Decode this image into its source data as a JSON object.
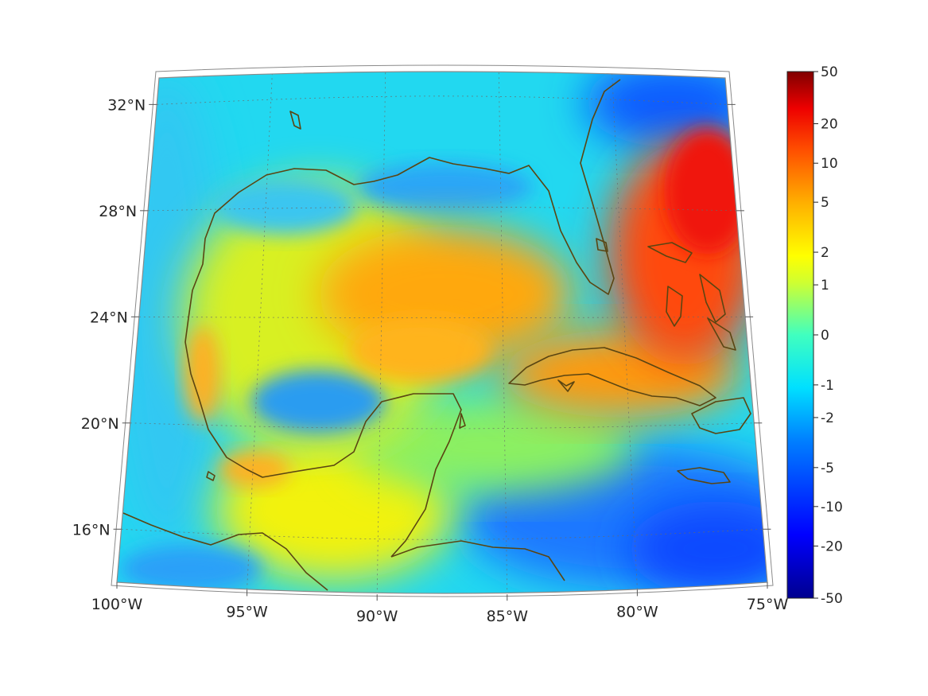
{
  "map": {
    "projection": "conic",
    "lon_range": [
      -100,
      -75
    ],
    "lat_range": [
      14,
      33
    ],
    "lon_ticks": [
      {
        "value": -100,
        "label": "100°W"
      },
      {
        "value": -95,
        "label": "95°W"
      },
      {
        "value": -90,
        "label": "90°W"
      },
      {
        "value": -85,
        "label": "85°W"
      },
      {
        "value": -80,
        "label": "80°W"
      },
      {
        "value": -75,
        "label": "75°W"
      }
    ],
    "lat_ticks": [
      {
        "value": 16,
        "label": "16°N"
      },
      {
        "value": 20,
        "label": "20°N"
      },
      {
        "value": 24,
        "label": "24°N"
      },
      {
        "value": 28,
        "label": "28°N"
      },
      {
        "value": 32,
        "label": "32°N"
      }
    ],
    "grid": true,
    "coastline_color": "#5a4512",
    "colormap": "jet"
  },
  "colorbar": {
    "placement": "right",
    "range": [
      -50,
      50
    ],
    "ticks": [
      "50",
      "20",
      "10",
      "5",
      "2",
      "1",
      "0",
      "-1",
      "-2",
      "-5",
      "-10",
      "-20",
      "-50"
    ]
  },
  "field_regions": [
    {
      "name": "caribbean-atlantic-positive",
      "level": "10"
    },
    {
      "name": "central-gulf-positive",
      "level": "5"
    },
    {
      "name": "gulf-coastal-band",
      "level": "1"
    },
    {
      "name": "bay-of-campeche-negative",
      "level": "-2"
    },
    {
      "name": "southern-caribbean-negative",
      "level": "-5"
    },
    {
      "name": "northern-atlantic-strong-negative",
      "level": "-10"
    }
  ]
}
